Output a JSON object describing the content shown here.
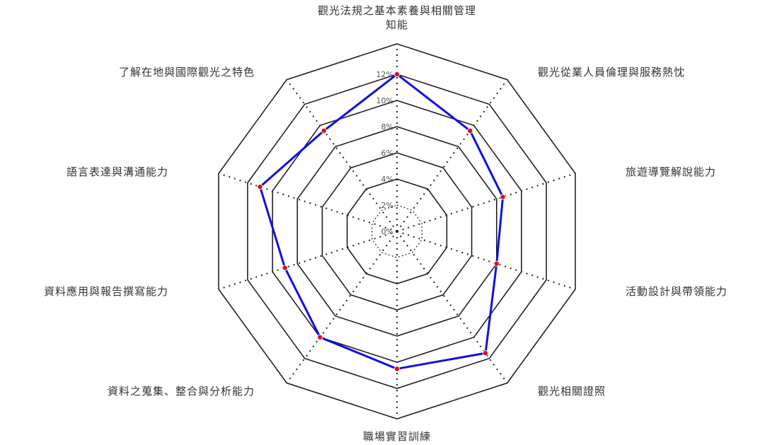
{
  "chart_data": {
    "type": "radar",
    "title": "",
    "axes": [
      "觀光法規之基本素養與相關管理\n知能",
      "觀光從業人員倫理與服務熱忱",
      "旅遊導覽解說能力",
      "活動設計與帶領能力",
      "觀光相關證照",
      "職場實習訓練",
      "資料之蒐集、整合與分析能力",
      "資料應用與報告撰寫能力",
      "語言表達與溝通能力",
      "了解在地與國際觀光之特色"
    ],
    "series": [
      {
        "values": [
          12.0,
          9.5,
          8.5,
          8.0,
          11.5,
          10.5,
          10.0,
          9.0,
          11.0,
          9.5
        ],
        "color": "#1010e0",
        "marker_color": "#e01010"
      }
    ],
    "rlim": [
      0,
      12
    ],
    "tick_values": [
      0,
      2,
      4,
      6,
      8,
      10,
      12
    ],
    "tick_labels": [
      "0%",
      "2%",
      "4%",
      "6%",
      "8%",
      "10%",
      "12%"
    ],
    "grid": true,
    "grid_shape": "polygon"
  }
}
